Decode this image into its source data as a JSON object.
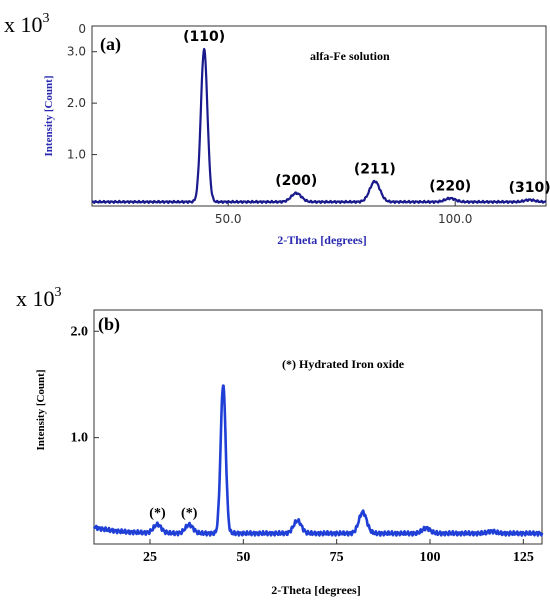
{
  "chart_data": [
    {
      "id": "a",
      "type": "line",
      "panel_label": "(a)",
      "multiplier": "x 10",
      "multiplier_exp": "3",
      "annotation": "alfa-Fe solution",
      "xlabel": "2-Theta [degrees]",
      "ylabel": "Intensity [Count]",
      "xlim": [
        20,
        120
      ],
      "ylim": [
        0,
        3.5
      ],
      "xticks": [
        50,
        100
      ],
      "xtick_labels": [
        "50.0",
        "100.0"
      ],
      "yticks": [
        1.0,
        2.0,
        3.0
      ],
      "ytick_labels": [
        "1.0",
        "2.0",
        "3.0"
      ],
      "top_tick_label": "0",
      "line_color": "#1a1a8c",
      "baseline": 0.08,
      "peaks": [
        {
          "x": 44.7,
          "y": 3.05,
          "label": "(110)"
        },
        {
          "x": 65.0,
          "y": 0.25,
          "label": "(200)"
        },
        {
          "x": 82.3,
          "y": 0.48,
          "label": "(211)"
        },
        {
          "x": 98.9,
          "y": 0.15,
          "label": "(220)"
        },
        {
          "x": 116.4,
          "y": 0.12,
          "label": "(310)"
        }
      ]
    },
    {
      "id": "b",
      "type": "line",
      "panel_label": "(b)",
      "multiplier": "x 10",
      "multiplier_exp": "3",
      "annotation": "(*)  Hydrated Iron oxide",
      "xlabel": "2-Theta [degrees]",
      "ylabel": "Intensity [Count]",
      "xlim": [
        10,
        130
      ],
      "ylim": [
        0,
        2.2
      ],
      "xticks": [
        25,
        50,
        75,
        100,
        125
      ],
      "xtick_labels": [
        "25",
        "50",
        "75",
        "100",
        "125"
      ],
      "yticks": [
        1.0,
        2.0
      ],
      "ytick_labels": [
        "1.0",
        "2.0"
      ],
      "line_color": "#1f3fd6",
      "baseline": 0.1,
      "peaks": [
        {
          "x": 27.0,
          "y": 0.18,
          "label": "(*)"
        },
        {
          "x": 35.5,
          "y": 0.18,
          "label": "(*)"
        },
        {
          "x": 44.6,
          "y": 1.5,
          "label": ""
        },
        {
          "x": 64.5,
          "y": 0.22,
          "label": ""
        },
        {
          "x": 82.0,
          "y": 0.3,
          "label": ""
        },
        {
          "x": 99.0,
          "y": 0.15,
          "label": ""
        },
        {
          "x": 116.5,
          "y": 0.12,
          "label": ""
        }
      ]
    }
  ]
}
